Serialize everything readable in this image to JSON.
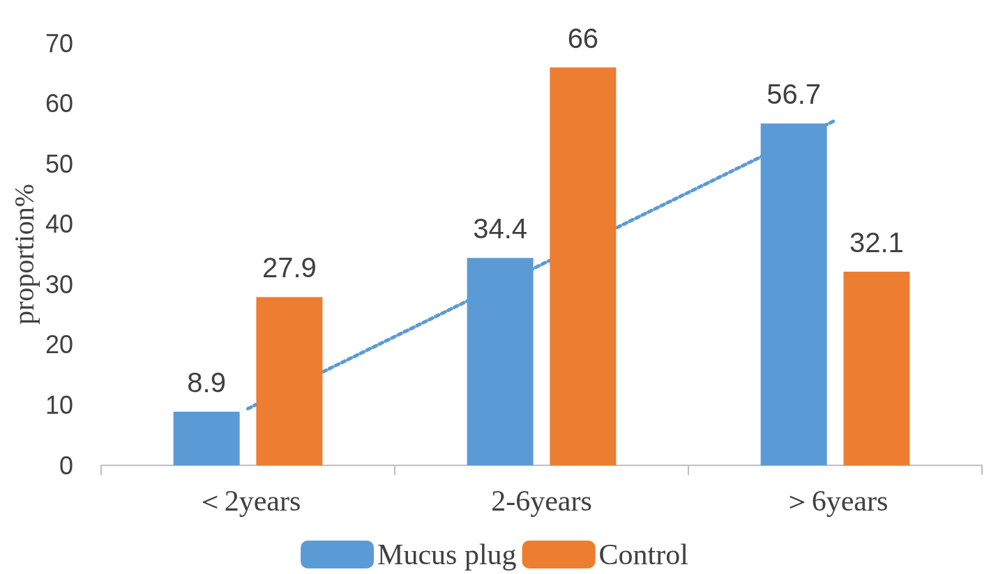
{
  "chart_data": {
    "type": "bar",
    "ylabel": "proportion%",
    "categories": [
      "＜2years",
      "2-6years",
      "＞6years"
    ],
    "series": [
      {
        "name": "Mucus plug",
        "color": "#5b9bd5",
        "values": [
          8.9,
          34.4,
          56.7
        ],
        "value_labels": [
          "8.9",
          "34.4",
          "56.7"
        ]
      },
      {
        "name": "Control",
        "color": "#ed7d31",
        "values": [
          27.9,
          66,
          32.1
        ],
        "value_labels": [
          "27.9",
          "66",
          "32.1"
        ]
      },
      {
        "type": "line",
        "color": "#5b9bd5",
        "values": [
          9.4,
          33.3,
          57.2
        ],
        "line_style": "dotted",
        "marker": "none"
      }
    ],
    "ylim": [
      0,
      70
    ],
    "yticks": [
      0,
      10,
      20,
      30,
      40,
      50,
      60,
      70
    ],
    "grid": false,
    "legend": "bottom"
  }
}
